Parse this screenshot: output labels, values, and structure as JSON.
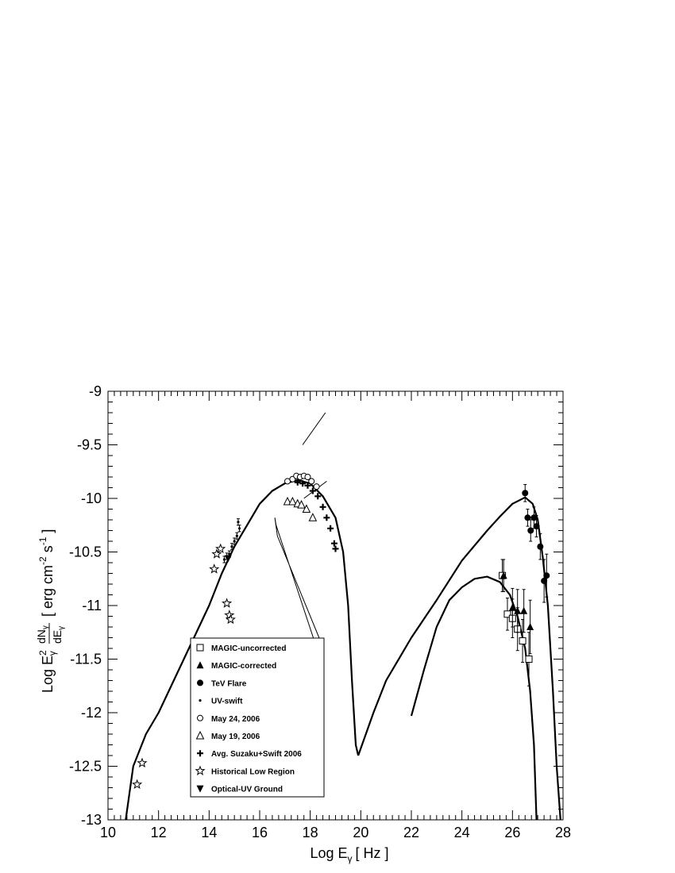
{
  "chart_data": {
    "type": "scatter",
    "title": "",
    "xlabel": "Log E",
    "xlabel_sub": "γ",
    "xlabel_unit": "[ Hz ]",
    "ylabel_prefix": "Log E",
    "ylabel_sup": "2",
    "ylabel_sub": "γ",
    "ylabel_frac_num": "dN",
    "ylabel_frac_num_sub": "γ",
    "ylabel_frac_den": "dE",
    "ylabel_frac_den_sub": "γ",
    "ylabel_unit": "[ erg cm",
    "ylabel_unit_sup1": "-2",
    "ylabel_unit_mid": " s",
    "ylabel_unit_sup2": "-1",
    "ylabel_unit_end": " ]",
    "xlim": [
      10,
      28
    ],
    "ylim": [
      -13,
      -9
    ],
    "xticks": [
      10,
      12,
      14,
      16,
      18,
      20,
      22,
      24,
      26,
      28
    ],
    "xtick_labels": [
      "10",
      "12",
      "14",
      "16",
      "18",
      "20",
      "22",
      "24",
      "26",
      "28"
    ],
    "yticks": [
      -13,
      -12.5,
      -12,
      -11.5,
      -11,
      -10.5,
      -10,
      -9.5,
      -9
    ],
    "ytick_labels": [
      "-13",
      "-12.5",
      "-12",
      "-11.5",
      "-11",
      "-10.5",
      "-10",
      "-9.5",
      "-9"
    ],
    "grid": false,
    "legend_position": "bottom-left",
    "series": [
      {
        "name": "MAGIC-uncorrected",
        "marker": "square-open",
        "points": [
          [
            25.6,
            -10.72,
            0.15
          ],
          [
            25.8,
            -11.08,
            0.15
          ],
          [
            26.0,
            -11.12,
            0.18
          ],
          [
            26.2,
            -11.22,
            0.2
          ],
          [
            26.4,
            -11.33,
            0.2
          ],
          [
            26.65,
            -11.5,
            0.25
          ]
        ]
      },
      {
        "name": "MAGIC-corrected",
        "marker": "triangle-up-filled",
        "points": [
          [
            25.65,
            -10.72,
            0.15
          ],
          [
            26.0,
            -11.02,
            0.18
          ],
          [
            26.2,
            -11.05,
            0.2
          ],
          [
            26.45,
            -11.05,
            0.2
          ],
          [
            26.7,
            -11.2,
            0.25
          ]
        ]
      },
      {
        "name": "TeV Flare",
        "marker": "circle-filled",
        "points": [
          [
            26.5,
            -9.95,
            0.08
          ],
          [
            26.6,
            -10.18,
            0.08
          ],
          [
            26.72,
            -10.3,
            0.1
          ],
          [
            26.85,
            -10.18,
            0.1
          ],
          [
            26.95,
            -10.26,
            0.1
          ],
          [
            27.1,
            -10.45,
            0.12
          ],
          [
            27.25,
            -10.77,
            0.2
          ],
          [
            27.35,
            -10.72,
            0.2
          ]
        ]
      },
      {
        "name": "UV-swift",
        "marker": "dot",
        "points": [
          [
            14.6,
            -10.57,
            0.03
          ],
          [
            14.7,
            -10.54,
            0.03
          ],
          [
            14.8,
            -10.52,
            0.03
          ],
          [
            14.9,
            -10.45,
            0.03
          ],
          [
            15.0,
            -10.4,
            0.03
          ],
          [
            15.1,
            -10.35,
            0.03
          ],
          [
            15.2,
            -10.28,
            0.03
          ],
          [
            15.15,
            -10.22,
            0.03
          ]
        ]
      },
      {
        "name": "May 24, 2006",
        "marker": "circle-open",
        "points": [
          [
            17.1,
            -9.84
          ],
          [
            17.3,
            -9.82
          ],
          [
            17.45,
            -9.79
          ],
          [
            17.6,
            -9.8
          ],
          [
            17.75,
            -9.79
          ],
          [
            17.9,
            -9.8
          ],
          [
            18.05,
            -9.84
          ],
          [
            18.25,
            -9.89
          ]
        ]
      },
      {
        "name": "May 19, 2006",
        "marker": "triangle-up-open",
        "points": [
          [
            17.1,
            -10.03
          ],
          [
            17.3,
            -10.03
          ],
          [
            17.5,
            -10.05
          ],
          [
            17.65,
            -10.06
          ],
          [
            17.85,
            -10.1
          ],
          [
            18.1,
            -10.18
          ]
        ]
      },
      {
        "name": "Avg. Suzaku+Swift 2006",
        "marker": "cross",
        "points": [
          [
            17.5,
            -9.85
          ],
          [
            17.7,
            -9.86
          ],
          [
            17.9,
            -9.88
          ],
          [
            18.1,
            -9.93
          ],
          [
            18.3,
            -9.98
          ],
          [
            18.5,
            -10.08
          ],
          [
            18.65,
            -10.18
          ],
          [
            18.8,
            -10.28
          ],
          [
            18.95,
            -10.42
          ],
          [
            19.0,
            -10.47
          ]
        ]
      },
      {
        "name": "Historical Low Region",
        "marker": "star-open",
        "points": [
          [
            11.15,
            -12.67
          ],
          [
            11.35,
            -12.47
          ],
          [
            14.2,
            -10.66
          ],
          [
            14.3,
            -10.52
          ],
          [
            14.45,
            -10.47
          ],
          [
            14.7,
            -10.98
          ],
          [
            14.8,
            -11.09
          ],
          [
            14.85,
            -11.13
          ]
        ]
      },
      {
        "name": "Optical-UV Ground",
        "marker": "triangle-down-filled",
        "points": [
          [
            14.75,
            -10.56
          ]
        ]
      }
    ],
    "curves": [
      {
        "points": [
          [
            10.7,
            -13
          ],
          [
            11,
            -12.5
          ],
          [
            11.5,
            -12.2
          ],
          [
            12,
            -12.0
          ],
          [
            13,
            -11.5
          ],
          [
            14,
            -11
          ],
          [
            14.5,
            -10.7
          ],
          [
            15,
            -10.45
          ],
          [
            15.5,
            -10.25
          ],
          [
            16,
            -10.05
          ],
          [
            16.5,
            -9.93
          ],
          [
            17,
            -9.86
          ],
          [
            17.5,
            -9.83
          ],
          [
            18,
            -9.86
          ],
          [
            18.5,
            -9.98
          ],
          [
            19.0,
            -10.18
          ],
          [
            19.3,
            -10.5
          ],
          [
            19.5,
            -11.0
          ],
          [
            19.65,
            -11.7
          ],
          [
            19.8,
            -12.3
          ],
          [
            19.9,
            -12.4
          ]
        ]
      },
      {
        "points": [
          [
            19.9,
            -12.4
          ],
          [
            20.5,
            -12.0
          ],
          [
            21,
            -11.7
          ],
          [
            22,
            -11.3
          ],
          [
            23,
            -10.95
          ],
          [
            24,
            -10.58
          ],
          [
            25,
            -10.3
          ],
          [
            25.5,
            -10.17
          ],
          [
            26,
            -10.05
          ],
          [
            26.5,
            -9.99
          ],
          [
            26.8,
            -10.05
          ],
          [
            27,
            -10.2
          ],
          [
            27.2,
            -10.55
          ],
          [
            27.4,
            -11.0
          ],
          [
            27.6,
            -11.8
          ],
          [
            27.75,
            -12.5
          ],
          [
            27.9,
            -13
          ]
        ]
      },
      {
        "points": [
          [
            22.0,
            -12.03
          ],
          [
            22.5,
            -11.6
          ],
          [
            23,
            -11.2
          ],
          [
            23.5,
            -10.95
          ],
          [
            24,
            -10.83
          ],
          [
            24.5,
            -10.75
          ],
          [
            25,
            -10.73
          ],
          [
            25.5,
            -10.78
          ],
          [
            25.9,
            -10.9
          ],
          [
            26.2,
            -11.1
          ],
          [
            26.5,
            -11.4
          ],
          [
            26.7,
            -11.8
          ],
          [
            26.85,
            -12.3
          ],
          [
            26.95,
            -13
          ]
        ]
      }
    ],
    "segments": [
      {
        "points": [
          [
            17.7,
            -9.5
          ],
          [
            18.6,
            -9.2
          ]
        ]
      },
      {
        "points": [
          [
            17.75,
            -10.0
          ],
          [
            18.65,
            -9.84
          ]
        ]
      },
      {
        "points": [
          [
            16.6,
            -10.18
          ],
          [
            16.7,
            -10.35
          ],
          [
            18.35,
            -11.3
          ],
          [
            18.4,
            -11.5
          ],
          [
            16.65,
            -10.25
          ],
          [
            16.6,
            -10.18
          ]
        ]
      }
    ]
  }
}
